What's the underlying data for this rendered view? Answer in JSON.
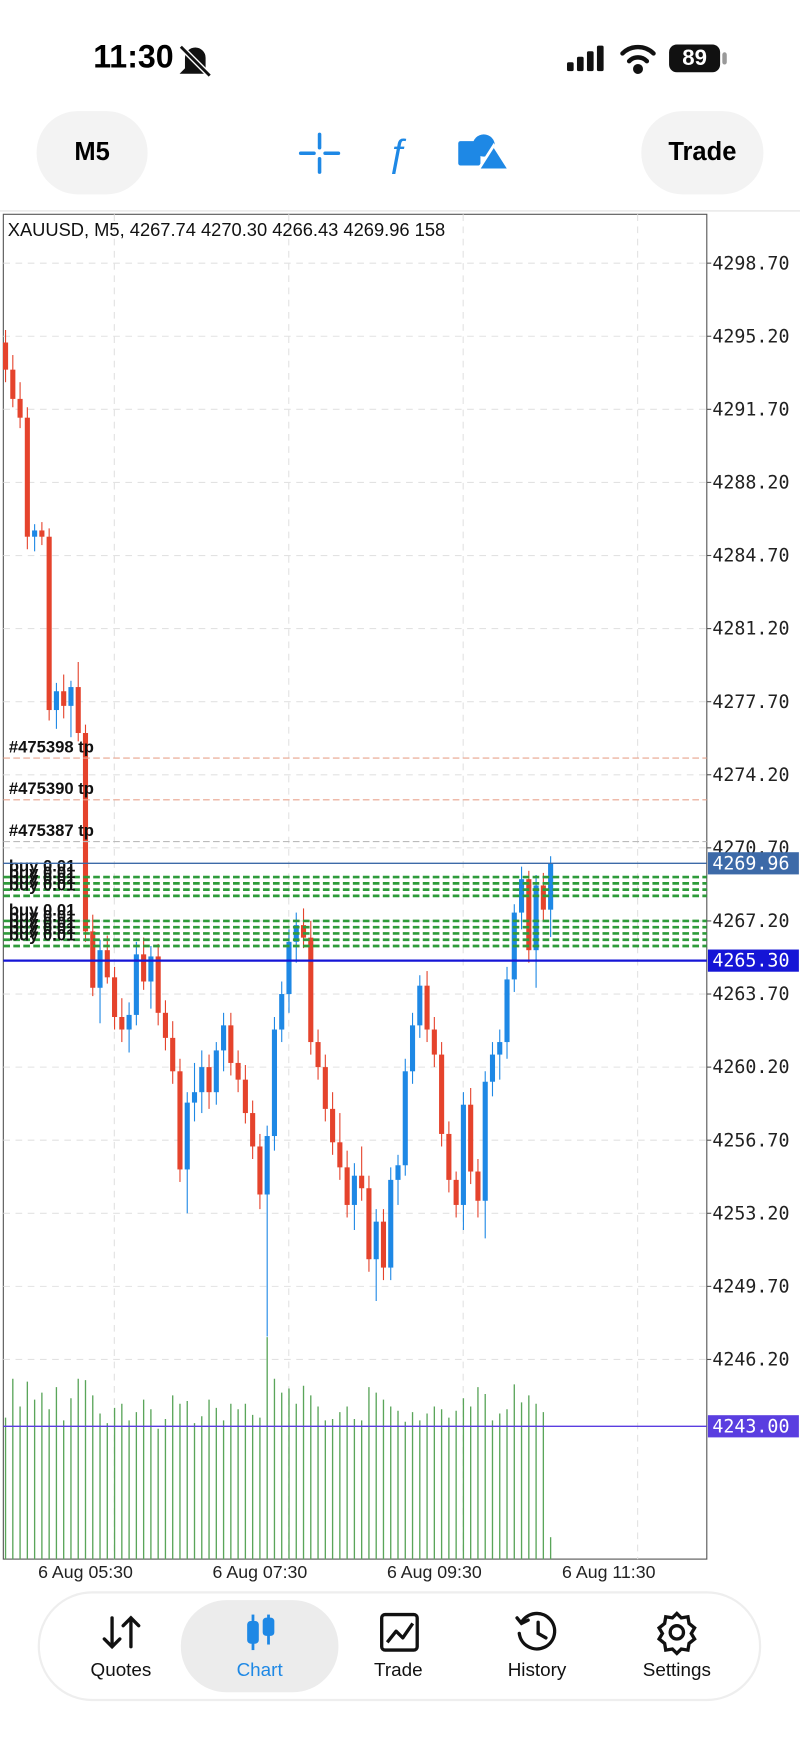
{
  "status_bar": {
    "time": "11:30",
    "battery": "89"
  },
  "toolbar": {
    "timeframe": "M5",
    "trade_button": "Trade"
  },
  "chart_data": {
    "type": "candlestick",
    "title": "XAUUSD, M5, 4267.74 4270.30 4266.43 4269.96 158",
    "categories": [
      null,
      null,
      null,
      null,
      null,
      null,
      null,
      null,
      null,
      null,
      null,
      "6 Aug 05:30",
      null,
      null,
      null,
      null,
      null,
      null,
      null,
      null,
      null,
      null,
      null,
      null,
      null,
      null,
      null,
      null,
      null,
      null,
      null,
      null,
      null,
      null,
      null,
      "6 Aug 07:30",
      null,
      null,
      null,
      null,
      null,
      null,
      null,
      null,
      null,
      null,
      null,
      null,
      null,
      null,
      null,
      null,
      null,
      null,
      null,
      null,
      null,
      null,
      null,
      "6 Aug 09:30",
      null,
      null,
      null,
      null,
      null,
      null,
      null,
      null,
      null,
      null,
      null,
      null,
      null,
      null,
      null,
      null,
      null,
      null,
      null,
      null,
      null,
      null,
      null,
      "6 Aug 11:30"
    ],
    "open": [
      4294.9,
      4293.6,
      4292.2,
      4291.3,
      4285.6,
      4285.9,
      4285.6,
      4277.3,
      4278.2,
      4277.5,
      4278.4,
      4276.2,
      4266.7,
      4264.0,
      4265.8,
      4264.5,
      4262.6,
      4262.0,
      4262.7,
      4265.6,
      4264.3,
      4265.5,
      4262.8,
      4261.6,
      4260.0,
      4255.3,
      4258.5,
      4259.0,
      4260.2,
      4259.0,
      4261.0,
      4262.2,
      4260.4,
      4259.6,
      4258.0,
      4256.4,
      4254.1,
      4256.9,
      4262.0,
      4263.7,
      4266.2,
      4267.0,
      4266.4,
      4261.4,
      4260.2,
      4258.2,
      4256.6,
      4255.4,
      4253.6,
      4255.0,
      4254.4,
      4251.0,
      4252.8,
      4250.6,
      4254.8,
      4255.5,
      4260.0,
      4262.2,
      4264.1,
      4262.0,
      4260.8,
      4257.0,
      4254.8,
      4253.6,
      4258.4,
      4255.2,
      4253.8,
      4259.5,
      4260.8,
      4261.4,
      4264.4,
      4267.6,
      4269.2,
      4265.8,
      4268.9,
      4267.74,
      null,
      null,
      null,
      null,
      null,
      null,
      null,
      null
    ],
    "high": [
      4295.5,
      4294.3,
      4293.0,
      4291.8,
      4286.2,
      4286.3,
      4286.0,
      4278.6,
      4279.0,
      4278.7,
      4279.6,
      4276.6,
      4267.5,
      4266.3,
      4266.5,
      4265.0,
      4263.5,
      4263.3,
      4266.2,
      4266.4,
      4266.0,
      4266.1,
      4263.4,
      4262.4,
      4260.6,
      4259.0,
      4260.4,
      4261.0,
      4260.8,
      4261.4,
      4262.8,
      4262.8,
      4261.0,
      4260.3,
      4258.6,
      4257.0,
      4257.4,
      4262.6,
      4264.3,
      4266.8,
      4267.6,
      4267.8,
      4267.2,
      4262.0,
      4260.8,
      4259.0,
      4258.0,
      4256.2,
      4255.6,
      4256.4,
      4255.0,
      4253.4,
      4253.4,
      4255.4,
      4256.0,
      4260.6,
      4262.8,
      4264.6,
      4264.8,
      4262.6,
      4261.4,
      4257.6,
      4255.2,
      4259.0,
      4259.2,
      4255.8,
      4260.0,
      4261.4,
      4262.0,
      4265.0,
      4268.0,
      4269.8,
      4269.6,
      4269.4,
      4269.5,
      4270.3,
      null,
      null,
      null,
      null,
      null,
      null,
      null,
      null
    ],
    "low": [
      4293.0,
      4291.8,
      4290.8,
      4285.0,
      4284.9,
      4285.2,
      4276.8,
      4276.4,
      4276.9,
      4276.0,
      4275.8,
      4266.2,
      4263.6,
      4262.3,
      4264.2,
      4262.0,
      4261.4,
      4260.9,
      4262.2,
      4263.9,
      4263.0,
      4262.2,
      4261.0,
      4259.4,
      4254.7,
      4253.2,
      4257.6,
      4258.0,
      4258.2,
      4258.4,
      4260.0,
      4259.8,
      4259.0,
      4257.5,
      4255.8,
      4253.4,
      4247.3,
      4256.2,
      4261.4,
      4262.8,
      4265.2,
      4265.9,
      4260.8,
      4259.6,
      4257.6,
      4256.0,
      4254.8,
      4253.0,
      4252.4,
      4253.8,
      4250.4,
      4249.0,
      4250.0,
      4250.0,
      4253.6,
      4255.0,
      4259.4,
      4261.6,
      4261.4,
      4260.2,
      4256.4,
      4254.2,
      4253.0,
      4252.4,
      4254.6,
      4253.0,
      4252.0,
      4258.8,
      4259.6,
      4260.6,
      4263.8,
      4266.8,
      4265.2,
      4264.0,
      4267.2,
      4266.43,
      null,
      null,
      null,
      null,
      null,
      null,
      null,
      null
    ],
    "close": [
      4293.6,
      4292.2,
      4291.3,
      4285.6,
      4285.9,
      4285.6,
      4277.3,
      4278.2,
      4277.5,
      4278.4,
      4276.2,
      4266.7,
      4264.0,
      4265.8,
      4264.5,
      4262.6,
      4262.0,
      4262.7,
      4265.6,
      4264.3,
      4265.5,
      4262.8,
      4261.6,
      4260.0,
      4255.3,
      4258.5,
      4259.0,
      4260.2,
      4259.0,
      4261.0,
      4262.2,
      4260.4,
      4259.6,
      4258.0,
      4256.4,
      4254.1,
      4256.9,
      4262.0,
      4263.7,
      4266.2,
      4267.0,
      4266.4,
      4261.4,
      4260.2,
      4258.2,
      4256.6,
      4255.4,
      4253.6,
      4255.0,
      4254.4,
      4251.0,
      4252.8,
      4250.6,
      4254.8,
      4255.5,
      4260.0,
      4262.2,
      4264.1,
      4262.0,
      4260.8,
      4257.0,
      4254.8,
      4253.6,
      4258.4,
      4255.2,
      4253.8,
      4259.5,
      4260.8,
      4261.4,
      4264.4,
      4267.6,
      4269.2,
      4265.8,
      4268.9,
      4267.74,
      4269.96,
      null,
      null,
      null,
      null,
      null,
      null,
      null,
      null
    ],
    "volume": [
      1020,
      1300,
      1100,
      1280,
      1150,
      1200,
      1080,
      1240,
      1000,
      1160,
      1300,
      1290,
      1180,
      1050,
      980,
      1090,
      1120,
      1000,
      1060,
      1150,
      1080,
      940,
      1010,
      1180,
      1120,
      1140,
      980,
      1030,
      1150,
      1090,
      1000,
      1120,
      1080,
      1120,
      1040,
      1020,
      1600,
      1300,
      1200,
      1230,
      1120,
      1250,
      1180,
      1100,
      1000,
      1010,
      1060,
      1100,
      1010,
      1000,
      1240,
      1200,
      1150,
      1100,
      1070,
      990,
      1060,
      1000,
      1050,
      1100,
      1080,
      1020,
      1070,
      1160,
      1100,
      1240,
      1190,
      1000,
      1050,
      1080,
      1260,
      1130,
      1180,
      1120,
      1060,
      158,
      null,
      null,
      null,
      null,
      null,
      null,
      null,
      null
    ],
    "up_color": "#1e88e5",
    "down_color": "#e5432c",
    "volume_color": "#5aa55a",
    "ylim": [
      4236.64,
      4301.04
    ],
    "yticks": [
      {
        "value": 4298.7,
        "label": "4298.70"
      },
      {
        "value": 4295.2,
        "label": "4295.20"
      },
      {
        "value": 4291.7,
        "label": "4291.70"
      },
      {
        "value": 4288.2,
        "label": "4288.20"
      },
      {
        "value": 4284.7,
        "label": "4284.70"
      },
      {
        "value": 4281.2,
        "label": "4281.20"
      },
      {
        "value": 4277.7,
        "label": "4277.70"
      },
      {
        "value": 4274.2,
        "label": "4274.20"
      },
      {
        "value": 4270.7,
        "label": "4270.70"
      },
      {
        "value": 4267.2,
        "label": "4267.20"
      },
      {
        "value": 4263.7,
        "label": "4263.70"
      },
      {
        "value": 4260.2,
        "label": "4260.20"
      },
      {
        "value": 4256.7,
        "label": "4256.70"
      },
      {
        "value": 4253.2,
        "label": "4253.20"
      },
      {
        "value": 4249.7,
        "label": "4249.70"
      },
      {
        "value": 4246.2,
        "label": "4246.20"
      }
    ],
    "grid": true,
    "orders": [
      {
        "label": "#475398 tp",
        "price": 4275.0,
        "color": "#e8a48e"
      },
      {
        "label": "#475390 tp",
        "price": 4273.0,
        "color": "#e8a48e"
      },
      {
        "label": "#475387 tp",
        "price": 4271.0,
        "color": "#bbbbbb"
      },
      {
        "label": "buy 0.01",
        "price": 4269.3,
        "color": "#2e9b3a"
      },
      {
        "label": "buy 0.01",
        "price": 4269.0,
        "color": "#2e9b3a"
      },
      {
        "label": "buy 0.01",
        "price": 4268.7,
        "color": "#2e9b3a"
      },
      {
        "label": "buy 0.01",
        "price": 4268.4,
        "color": "#2e9b3a"
      },
      {
        "label": "buy 0.01",
        "price": 4267.2,
        "color": "#2e9b3a"
      },
      {
        "label": "buy 0.01",
        "price": 4266.9,
        "color": "#2e9b3a"
      },
      {
        "label": "buy 0.01",
        "price": 4266.6,
        "color": "#2e9b3a"
      },
      {
        "label": "buy 0.01",
        "price": 4266.3,
        "color": "#2e9b3a"
      },
      {
        "label": "buy 0.01",
        "price": 4266.0,
        "color": "#2e9b3a"
      }
    ],
    "price_lines": [
      {
        "price": 4269.96,
        "color": "#3d6aa8"
      },
      {
        "price": {
          "value": 4265.3,
          "label": "4265.30"
        },
        "color": "#1515d6"
      },
      {
        "price": {
          "value": 4243.0,
          "label": "4243.00"
        },
        "color": "#5a3ee0"
      }
    ]
  },
  "nav": {
    "items": [
      "Quotes",
      "Chart",
      "Trade",
      "History",
      "Settings"
    ]
  }
}
